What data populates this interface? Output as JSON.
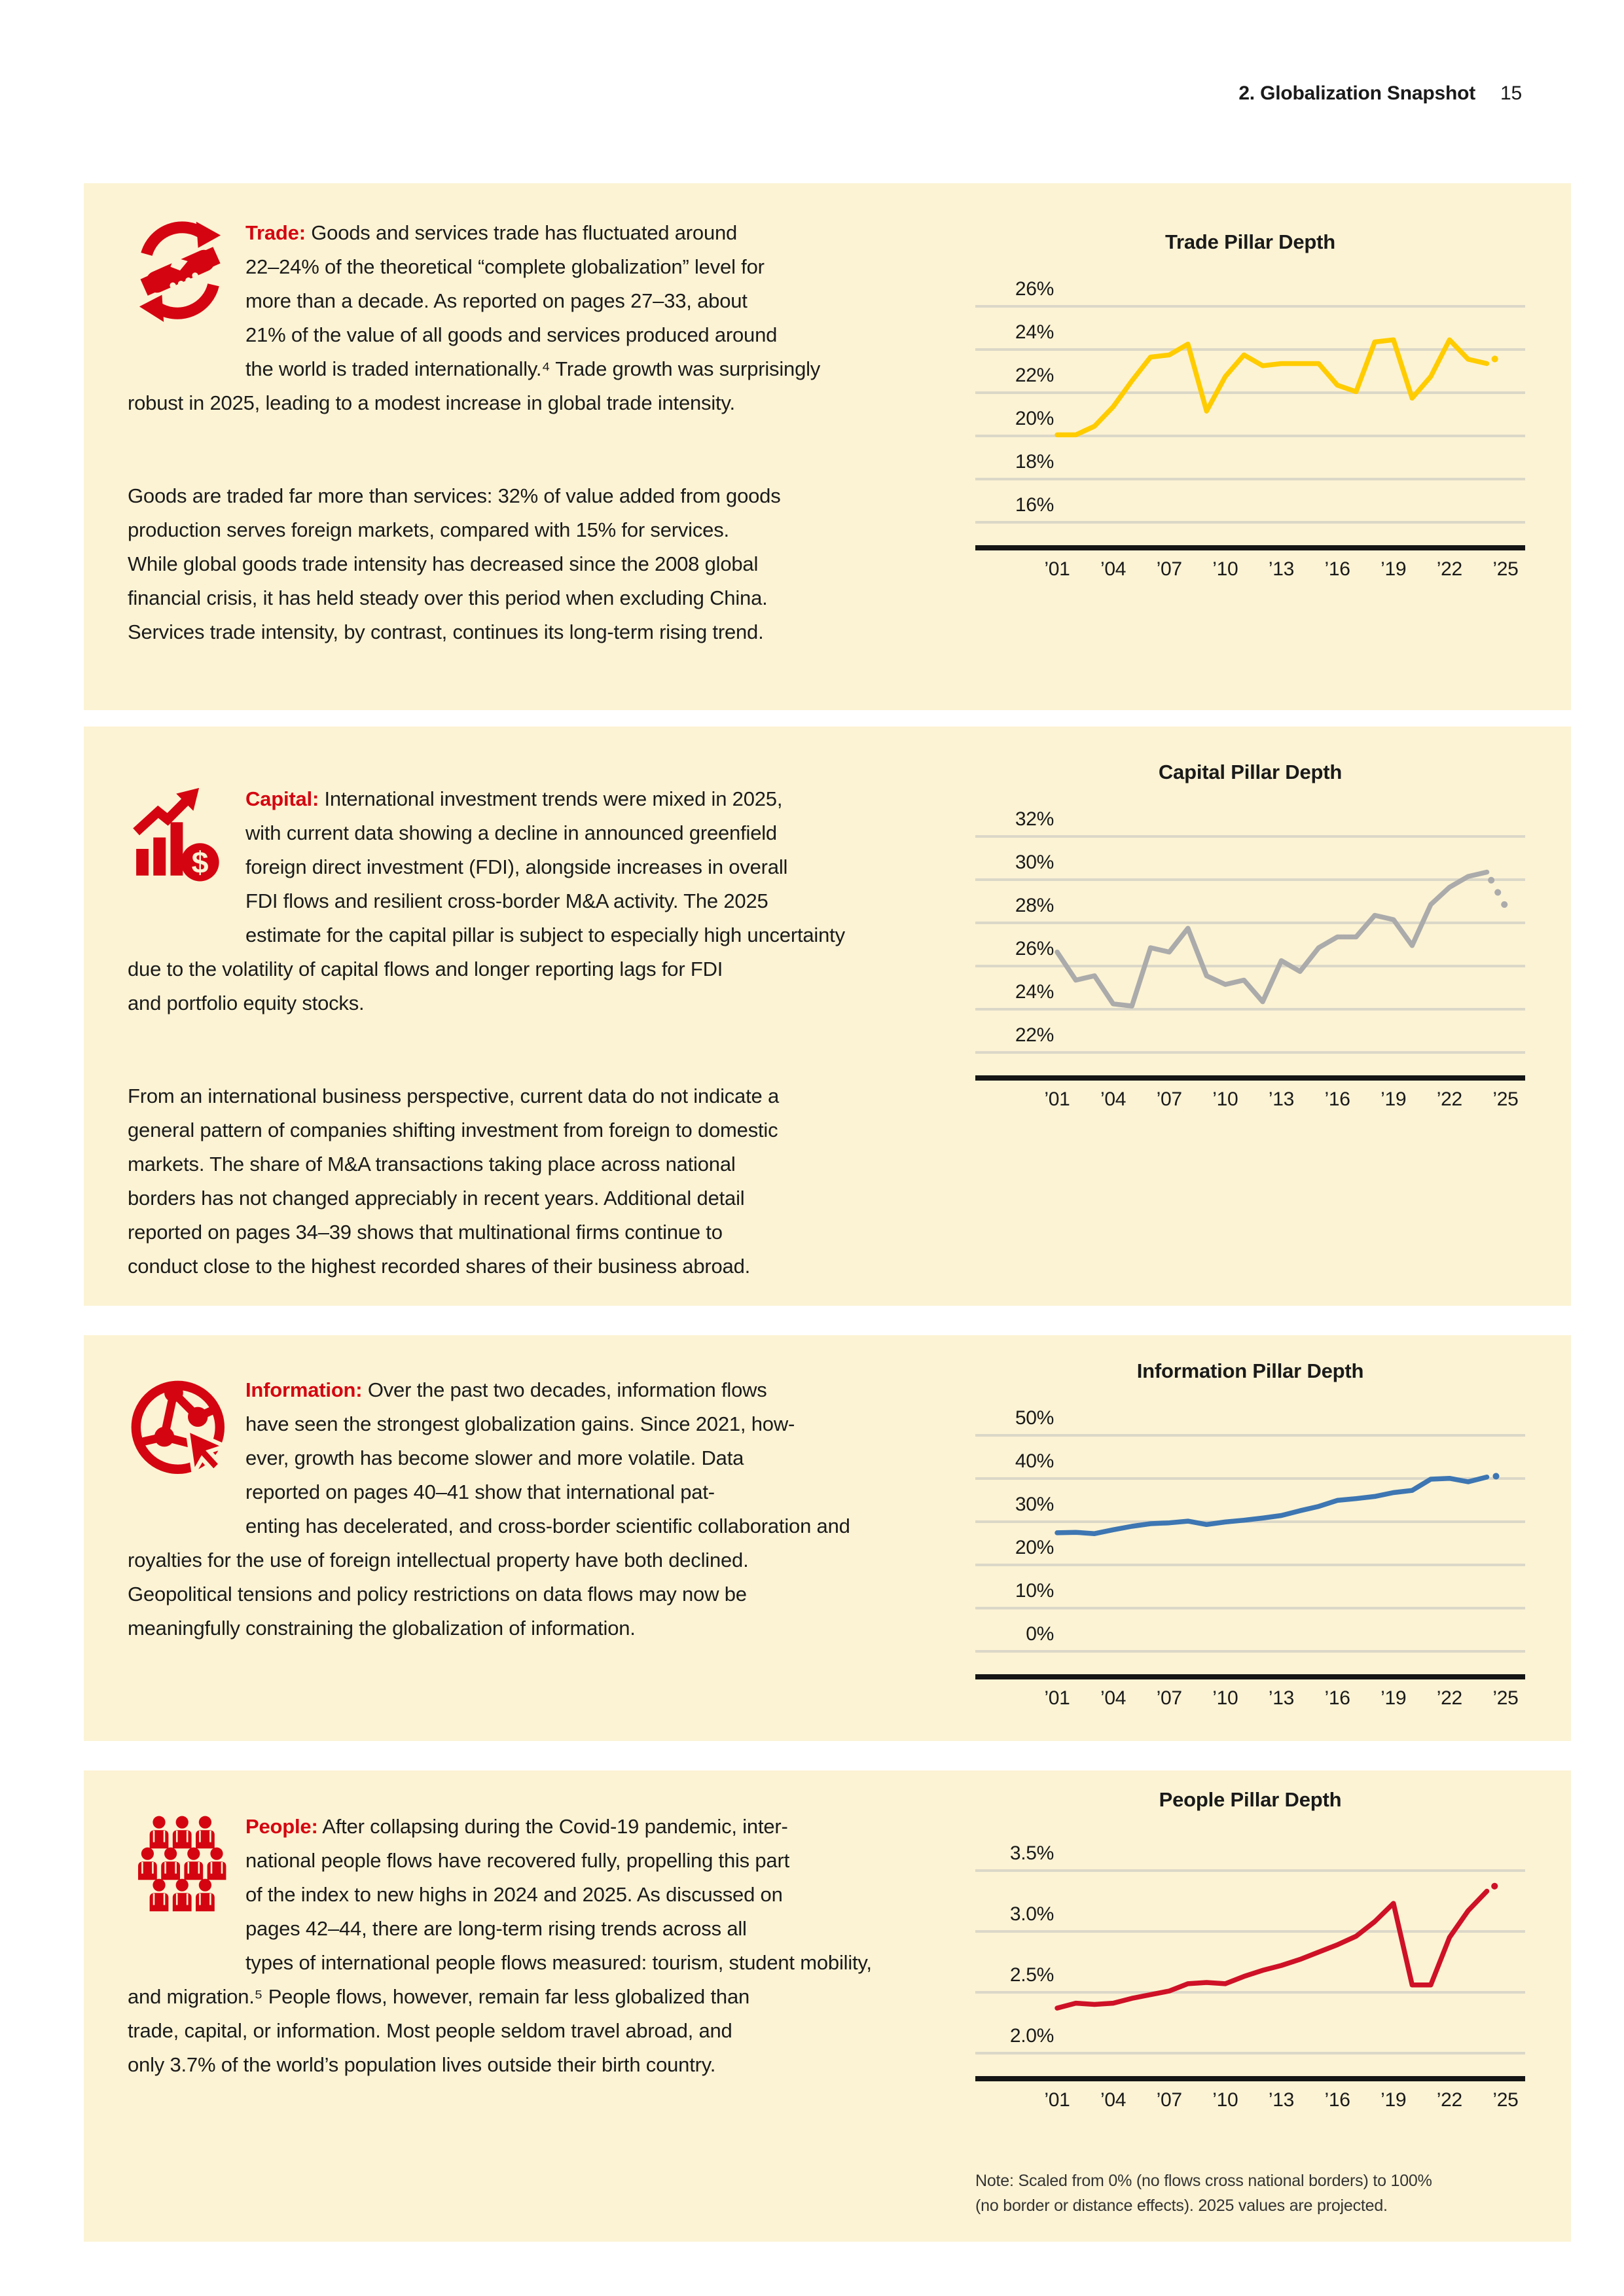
{
  "header": {
    "title": "2. Globalization Snapshot",
    "page_number": "15"
  },
  "colors": {
    "page_background": "#FFFFFF",
    "panel_background": "#FCF3D4",
    "accent_red": "#D40511",
    "trade_line": "#FFCC00",
    "capital_line": "#ABABAB",
    "information_line": "#3D76B2",
    "people_line": "#CE1126",
    "gridline": "#DBD7C8",
    "axis": "#151515",
    "text": "#1B1B1B"
  },
  "sections": [
    {
      "id": "trade",
      "icon": "handshake-circular-arrows-icon",
      "label": "Trade:",
      "para1": " Goods and services trade has fluctuated around\n22–24% of the theoretical “complete globalization” level for\nmore than a decade. As reported on pages 27–33, about\n21% of the value of all goods and services produced around\nthe world is traded internationally.⁴ Trade growth was surprisingly\nrobust in 2025, leading to a modest increase in global trade intensity.",
      "para2": "Goods are traded far more than services: 32% of value added from goods\nproduction serves foreign markets, compared with 15% for services.\nWhile global goods trade intensity has decreased since the 2008 global\nfinancial crisis, it has held steady over this period when excluding China.\nServices trade intensity, by contrast, continues its long-term rising trend."
    },
    {
      "id": "capital",
      "icon": "bar-chart-growth-dollar-icon",
      "label": "Capital:",
      "para1": " International investment trends were mixed in 2025,\nwith current data showing a decline in announced greenfield\nforeign direct investment (FDI), alongside increases in overall\nFDI flows and resilient cross-border M&A activity. The 2025\nestimate for the capital pillar is subject to especially high uncertainty\ndue to the volatility of capital flows and longer reporting lags for FDI\nand portfolio equity stocks.",
      "para2": "From an international business perspective, current data do not indicate a\ngeneral pattern of companies shifting investment from foreign to domestic\nmarkets. The share of M&A transactions taking place across national\nborders has not changed appreciably in recent years. Additional detail\nreported on pages 34–39 shows that multinational firms continue to\nconduct close to the highest recorded shares of their business abroad."
    },
    {
      "id": "information",
      "icon": "globe-network-cursor-icon",
      "label": "Information:",
      "para1": " Over the past two decades, information flows\nhave seen the strongest globalization gains. Since 2021, how-\never, growth has become slower and more volatile. Data\nreported on pages 40–41 show that international pat-\nenting has decelerated, and cross-border scientific collaboration and\nroyalties for the use of foreign intellectual property have both declined.\nGeopolitical tensions and policy restrictions on data flows may now be\nmeaningfully constraining the globalization of information.",
      "para2": ""
    },
    {
      "id": "people",
      "icon": "people-group-icon",
      "label": "People:",
      "para1": " After collapsing during the Covid-19 pandemic, inter-\nnational people flows have recovered fully, propelling this part\nof the index to new highs in 2024 and 2025. As discussed on\npages 42–44, there are long-term rising trends across all\ntypes of international people flows measured: tourism, student mobility,\nand migration.⁵ People flows, however, remain far less globalized than\ntrade, capital, or information. Most people seldom travel abroad, and\nonly 3.7% of the world’s population lives outside their birth country.",
      "para2": ""
    }
  ],
  "note": "Note: Scaled from 0% (no flows cross national borders) to 100%\n(no border or distance effects). 2025 values are projected.",
  "chart_data": [
    {
      "type": "line",
      "title": "Trade Pillar Depth",
      "series_name": "Trade pillar depth",
      "color": "#FFCC00",
      "unit": "%",
      "y_axis_labels": [
        "26%",
        "24%",
        "22%",
        "20%",
        "18%",
        "16%"
      ],
      "y_axis_values": [
        26,
        24,
        22,
        20,
        18,
        16
      ],
      "y_step": 2,
      "x_tick_labels": [
        "’01",
        "’04",
        "’07",
        "’10",
        "’13",
        "’16",
        "’19",
        "’22",
        "’25"
      ],
      "years": [
        2001,
        2002,
        2003,
        2004,
        2005,
        2006,
        2007,
        2008,
        2009,
        2010,
        2011,
        2012,
        2013,
        2014,
        2015,
        2016,
        2017,
        2018,
        2019,
        2020,
        2021,
        2022,
        2023,
        2024,
        2025
      ],
      "values": [
        19.2,
        19.2,
        19.6,
        20.5,
        21.7,
        22.8,
        22.9,
        23.4,
        20.3,
        21.9,
        22.9,
        22.4,
        22.5,
        22.5,
        22.5,
        21.5,
        21.2,
        23.5,
        23.6,
        20.9,
        21.9,
        23.6,
        22.7,
        22.5,
        23.0
      ],
      "projected_years": [
        2025
      ],
      "grid": true,
      "legend": "none"
    },
    {
      "type": "line",
      "title": "Capital Pillar Depth",
      "series_name": "Capital pillar depth",
      "color": "#ABABAB",
      "unit": "%",
      "y_axis_labels": [
        "32%",
        "30%",
        "28%",
        "26%",
        "24%",
        "22%"
      ],
      "y_axis_values": [
        32,
        30,
        28,
        26,
        24,
        22
      ],
      "y_step": 2,
      "x_tick_labels": [
        "’01",
        "’04",
        "’07",
        "’10",
        "’13",
        "’16",
        "’19",
        "’22",
        "’25"
      ],
      "years": [
        2001,
        2002,
        2003,
        2004,
        2005,
        2006,
        2007,
        2008,
        2009,
        2010,
        2011,
        2012,
        2013,
        2014,
        2015,
        2016,
        2017,
        2018,
        2019,
        2020,
        2021,
        2022,
        2023,
        2024,
        2025
      ],
      "values": [
        25.8,
        24.5,
        24.7,
        23.4,
        23.3,
        26.0,
        25.8,
        26.9,
        24.7,
        24.3,
        24.5,
        23.5,
        25.4,
        24.9,
        26.0,
        26.5,
        26.5,
        27.5,
        27.3,
        26.1,
        28.0,
        28.8,
        29.3,
        29.5,
        27.9
      ],
      "projected_years": [
        2025
      ],
      "grid": true,
      "legend": "none"
    },
    {
      "type": "line",
      "title": "Information Pillar Depth",
      "series_name": "Information pillar depth",
      "color": "#3D76B2",
      "unit": "%",
      "y_axis_labels": [
        "50%",
        "40%",
        "30%",
        "20%",
        "10%",
        "0%"
      ],
      "y_axis_values": [
        50,
        40,
        30,
        20,
        10,
        0
      ],
      "y_step": 10,
      "x_tick_labels": [
        "’01",
        "’04",
        "’07",
        "’10",
        "’13",
        "’16",
        "’19",
        "’22",
        "’25"
      ],
      "years": [
        2001,
        2002,
        2003,
        2004,
        2005,
        2006,
        2007,
        2008,
        2009,
        2010,
        2011,
        2012,
        2013,
        2014,
        2015,
        2016,
        2017,
        2018,
        2019,
        2020,
        2021,
        2022,
        2023,
        2024,
        2025
      ],
      "values": [
        23.2,
        23.3,
        23.0,
        23.9,
        24.7,
        25.3,
        25.5,
        25.9,
        25.1,
        25.7,
        26.1,
        26.6,
        27.2,
        28.3,
        29.3,
        30.7,
        31.1,
        31.6,
        32.5,
        33.0,
        35.6,
        35.8,
        35.0,
        36.1,
        36.5
      ],
      "projected_years": [
        2025
      ],
      "grid": true,
      "legend": "none"
    },
    {
      "type": "line",
      "title": "People Pillar Depth",
      "series_name": "People pillar depth",
      "color": "#CE1126",
      "unit": "%",
      "y_axis_labels": [
        "3.5%",
        "3.0%",
        "2.5%",
        "2.0%"
      ],
      "y_axis_values": [
        3.5,
        3.0,
        2.5,
        2.0
      ],
      "y_step": 0.5,
      "x_tick_labels": [
        "’01",
        "’04",
        "’07",
        "’10",
        "’13",
        "’16",
        "’19",
        "’22",
        "’25"
      ],
      "years": [
        2001,
        2002,
        2003,
        2004,
        2005,
        2006,
        2007,
        2008,
        2009,
        2010,
        2011,
        2012,
        2013,
        2014,
        2015,
        2016,
        2017,
        2018,
        2019,
        2020,
        2021,
        2022,
        2023,
        2024,
        2025
      ],
      "values": [
        2.22,
        2.26,
        2.25,
        2.26,
        2.3,
        2.33,
        2.36,
        2.42,
        2.43,
        2.42,
        2.48,
        2.53,
        2.57,
        2.62,
        2.68,
        2.74,
        2.81,
        2.93,
        3.08,
        2.41,
        2.41,
        2.8,
        3.02,
        3.18,
        3.28
      ],
      "projected_years": [
        2025
      ],
      "grid": true,
      "legend": "none"
    }
  ]
}
